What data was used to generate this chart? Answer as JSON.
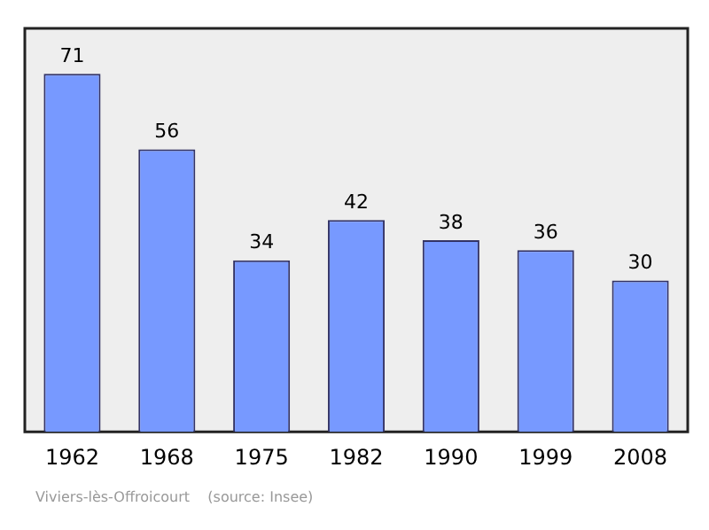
{
  "chart_data": {
    "type": "bar",
    "categories": [
      "1962",
      "1968",
      "1975",
      "1982",
      "1990",
      "1999",
      "2008"
    ],
    "values": [
      71,
      56,
      34,
      42,
      38,
      36,
      30
    ],
    "color": "#7799ff",
    "data_labels": true,
    "annotations": [
      "Viviers-lès-Offroicourt    (source: Insee)"
    ]
  }
}
